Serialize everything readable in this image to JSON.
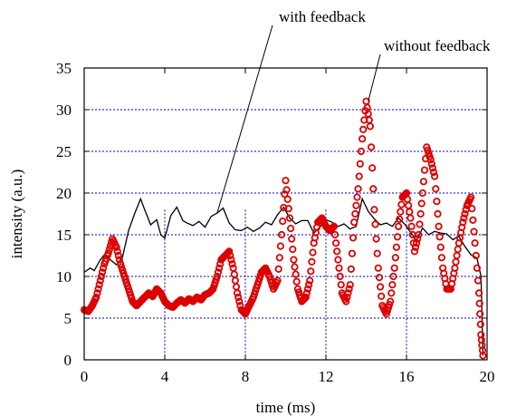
{
  "chart_data": {
    "type": "line",
    "title": "",
    "xlabel": "time (ms)",
    "ylabel": "intensity (a.u.)",
    "xlim": [
      0,
      20
    ],
    "ylim": [
      0,
      35
    ],
    "x_ticks": [
      "0",
      "4",
      "8",
      "12",
      "16",
      "20"
    ],
    "y_ticks": [
      "0",
      "5",
      "10",
      "15",
      "20",
      "25",
      "30",
      "35"
    ],
    "grid": {
      "horizontal_dotted_at": [
        5,
        10,
        15,
        20,
        25,
        30
      ],
      "vertical_dotted_at": [
        4,
        8,
        12,
        16
      ],
      "color": "#0000cc"
    },
    "annotations": [
      {
        "text": "with feedback",
        "points_to": [
          6.6,
          17.6
        ]
      },
      {
        "text": "without feedback",
        "points_to": [
          14.1,
          31
        ]
      }
    ],
    "series": [
      {
        "name": "with feedback",
        "style": "line",
        "color": "#000000",
        "x": [
          0.0,
          0.3,
          0.5,
          0.8,
          1.0,
          1.3,
          1.6,
          1.9,
          2.2,
          2.5,
          2.8,
          3.0,
          3.3,
          3.6,
          3.8,
          4.0,
          4.3,
          4.6,
          4.9,
          5.1,
          5.4,
          5.7,
          6.0,
          6.3,
          6.6,
          6.9,
          7.2,
          7.5,
          7.8,
          8.1,
          8.4,
          8.7,
          9.0,
          9.3,
          9.6,
          9.9,
          10.2,
          10.5,
          10.8,
          11.1,
          11.4,
          11.7,
          12.0,
          12.3,
          12.6,
          12.9,
          13.2,
          13.5,
          13.8,
          14.1,
          14.4,
          14.7,
          15.0,
          15.3,
          15.6,
          15.9,
          16.2,
          16.5,
          16.8,
          17.1,
          17.4,
          17.7,
          18.0,
          18.3,
          18.6,
          18.9,
          19.2,
          19.5,
          19.7,
          19.8
        ],
        "values": [
          10.5,
          11.0,
          10.7,
          12.0,
          12.6,
          12.0,
          11.4,
          12.3,
          15.5,
          17.5,
          19.3,
          18.0,
          16.2,
          16.8,
          15.0,
          14.6,
          17.3,
          18.3,
          16.7,
          16.4,
          16.1,
          16.6,
          15.9,
          17.2,
          17.6,
          18.2,
          16.4,
          15.6,
          15.5,
          15.9,
          15.4,
          15.8,
          16.5,
          16.2,
          17.4,
          18.3,
          17.0,
          16.3,
          16.7,
          16.7,
          15.2,
          15.9,
          16.8,
          16.5,
          16.0,
          16.3,
          15.7,
          16.0,
          19.3,
          17.8,
          16.9,
          16.2,
          16.4,
          16.0,
          17.0,
          16.3,
          15.3,
          14.3,
          15.8,
          15.0,
          15.4,
          15.2,
          15.1,
          14.4,
          14.8,
          13.6,
          12.6,
          12.2,
          10.0,
          0.5
        ]
      },
      {
        "name": "without feedback",
        "style": "markers",
        "color": "#dd0000",
        "x": [
          0.0,
          0.2,
          0.4,
          0.6,
          0.8,
          1.0,
          1.2,
          1.4,
          1.6,
          1.8,
          2.0,
          2.2,
          2.4,
          2.6,
          2.8,
          3.0,
          3.2,
          3.4,
          3.6,
          3.8,
          4.0,
          4.2,
          4.4,
          4.6,
          4.8,
          5.0,
          5.2,
          5.4,
          5.6,
          5.8,
          6.0,
          6.2,
          6.4,
          6.6,
          6.8,
          7.0,
          7.2,
          7.4,
          7.6,
          7.8,
          8.0,
          8.2,
          8.4,
          8.6,
          8.8,
          9.0,
          9.2,
          9.4,
          9.6,
          9.8,
          10.0,
          10.2,
          10.4,
          10.6,
          10.8,
          11.0,
          11.2,
          11.4,
          11.6,
          11.8,
          12.0,
          12.2,
          12.4,
          12.6,
          12.8,
          13.0,
          13.2,
          13.4,
          13.6,
          13.8,
          14.0,
          14.2,
          14.4,
          14.6,
          14.8,
          15.0,
          15.2,
          15.4,
          15.6,
          15.8,
          16.0,
          16.2,
          16.4,
          16.6,
          16.8,
          17.0,
          17.2,
          17.4,
          17.6,
          17.8,
          18.0,
          18.2,
          18.4,
          18.6,
          18.8,
          19.0,
          19.2,
          19.4,
          19.6,
          19.7,
          19.8
        ],
        "values": [
          6.0,
          5.8,
          6.5,
          7.5,
          9.5,
          11.5,
          12.8,
          14.5,
          13.5,
          11.5,
          10.0,
          8.5,
          7.0,
          6.5,
          7.0,
          7.5,
          8.0,
          7.6,
          8.5,
          8.0,
          7.0,
          6.5,
          6.3,
          6.8,
          7.2,
          6.8,
          7.3,
          7.0,
          7.5,
          7.2,
          7.8,
          8.0,
          8.5,
          10.0,
          12.0,
          12.5,
          13.0,
          11.0,
          8.0,
          6.0,
          5.5,
          6.5,
          7.5,
          9.0,
          10.5,
          11.0,
          10.0,
          8.5,
          9.5,
          15.0,
          21.5,
          17.0,
          12.0,
          8.5,
          7.0,
          7.5,
          9.5,
          14.0,
          16.5,
          17.0,
          16.0,
          15.5,
          16.0,
          12.0,
          8.0,
          7.0,
          9.0,
          16.5,
          20.5,
          26.5,
          31.0,
          28.0,
          18.0,
          11.0,
          6.5,
          5.5,
          7.0,
          11.0,
          16.0,
          19.5,
          20.0,
          17.0,
          13.0,
          15.0,
          20.0,
          25.5,
          24.0,
          22.0,
          16.0,
          11.0,
          8.5,
          8.5,
          11.0,
          14.0,
          16.5,
          18.5,
          19.5,
          14.0,
          8.0,
          3.0,
          0.5
        ]
      }
    ]
  }
}
